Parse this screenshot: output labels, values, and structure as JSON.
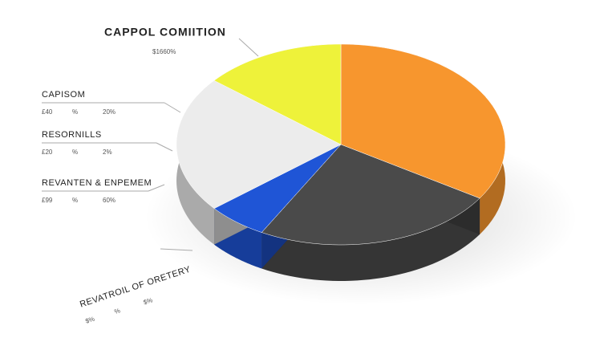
{
  "chart_data": {
    "type": "pie",
    "title": "CAPPOL COMIITION",
    "subtitle": "$1660%",
    "values": [
      34,
      24,
      6,
      22,
      14
    ],
    "colors": [
      "#f7962e",
      "#4a4a4a",
      "#1f55d6",
      "#ececec",
      "#eef23a"
    ],
    "annotations": [
      {
        "label": "CAPISOM",
        "cells": [
          "£40",
          "%",
          "20%"
        ]
      },
      {
        "label": "RESORNILLS",
        "cells": [
          "£20",
          "%",
          "2%"
        ]
      },
      {
        "label": "REVANTEN & ENPEMEM",
        "cells": [
          "£99",
          "%",
          "60%"
        ]
      },
      {
        "label": "REVATROIL OF ORETERY",
        "cells": [
          "$%",
          "%",
          "$%"
        ]
      }
    ]
  }
}
